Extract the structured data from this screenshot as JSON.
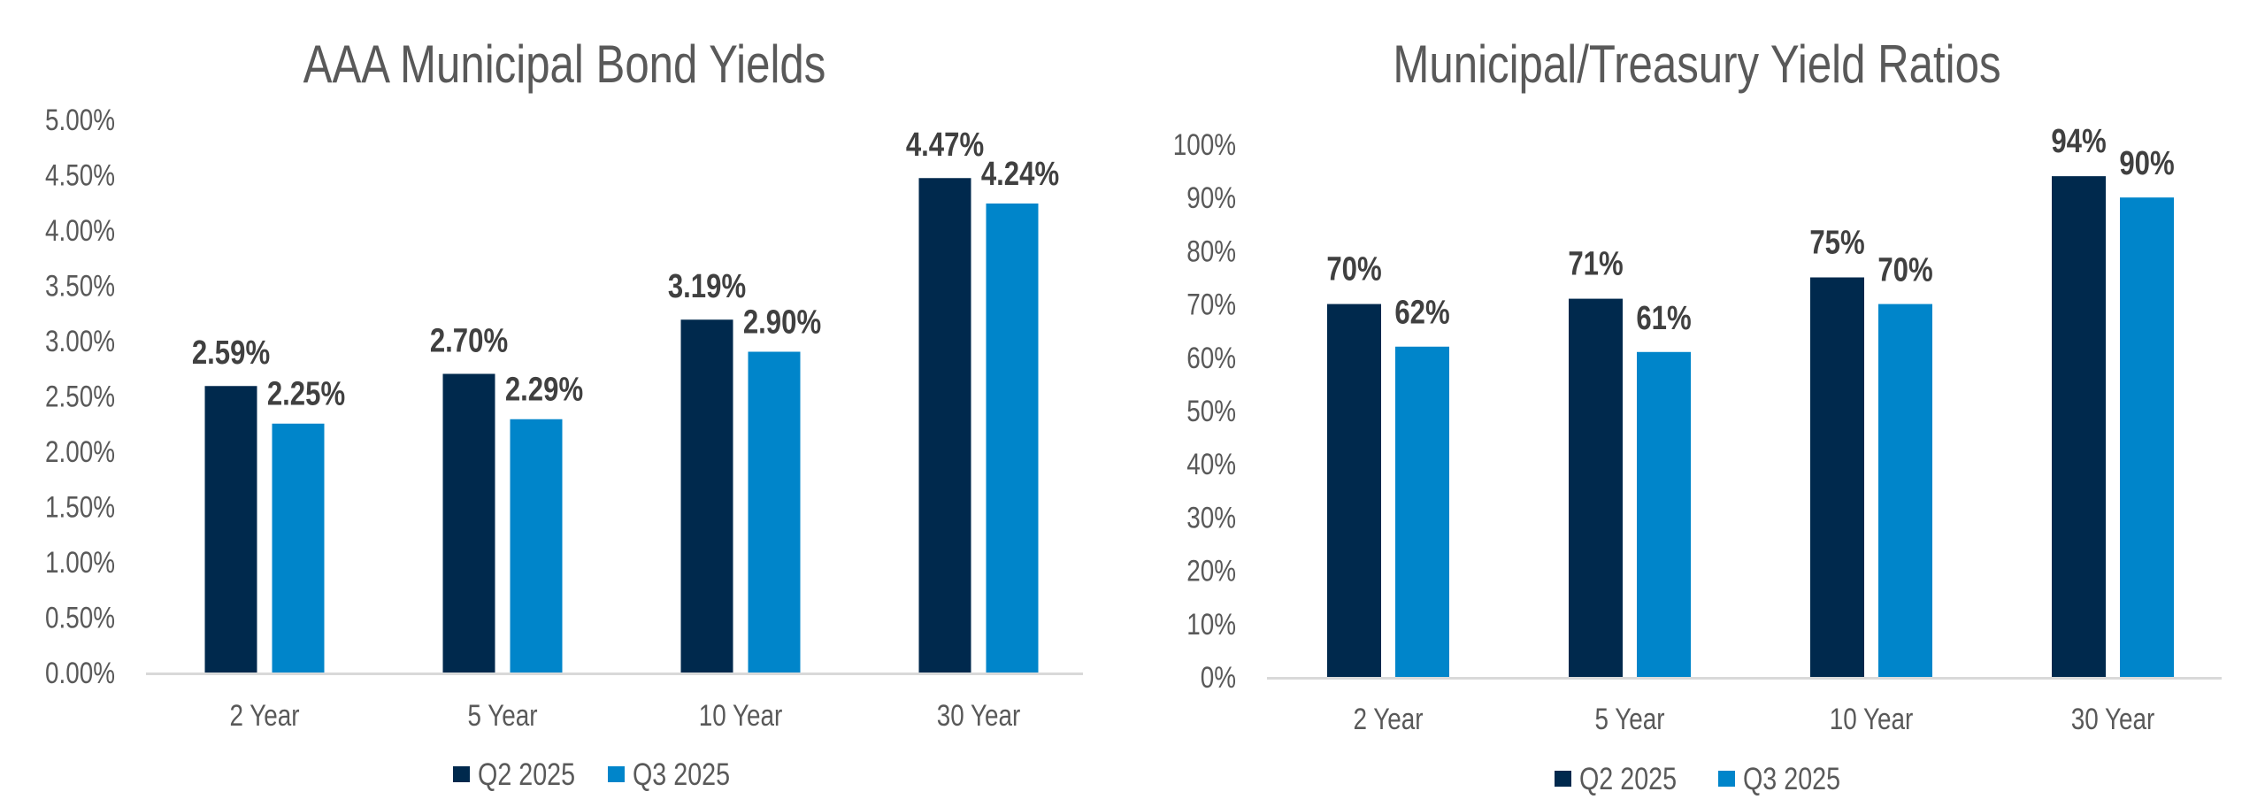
{
  "colors": {
    "q2": "#00294D",
    "q3": "#0085CA",
    "axis": "#D9D9D9",
    "text": "#595959",
    "label": "#404040"
  },
  "chart_data": [
    {
      "type": "bar",
      "title": "AAA Municipal Bond Yields",
      "xlabel": "",
      "ylabel": "",
      "categories": [
        "2 Year",
        "5 Year",
        "10 Year",
        "30 Year"
      ],
      "series": [
        {
          "name": "Q2 2025",
          "values": [
            2.59,
            2.7,
            3.19,
            4.47
          ],
          "labels": [
            "2.59%",
            "2.70%",
            "3.19%",
            "4.47%"
          ]
        },
        {
          "name": "Q3 2025",
          "values": [
            2.25,
            2.29,
            2.9,
            4.24
          ],
          "labels": [
            "2.25%",
            "2.29%",
            "2.90%",
            "4.24%"
          ]
        }
      ],
      "ylim": [
        0,
        5
      ],
      "yticks": [
        0,
        0.5,
        1,
        1.5,
        2,
        2.5,
        3,
        3.5,
        4,
        4.5,
        5
      ],
      "ytick_labels": [
        "0.00%",
        "0.50%",
        "1.00%",
        "1.50%",
        "2.00%",
        "2.50%",
        "3.00%",
        "3.50%",
        "4.00%",
        "4.50%",
        "5.00%"
      ],
      "grid": false,
      "legend": {
        "position": "bottom",
        "entries": [
          "Q2 2025",
          "Q3 2025"
        ]
      }
    },
    {
      "type": "bar",
      "title": "Municipal/Treasury Yield Ratios",
      "xlabel": "",
      "ylabel": "",
      "categories": [
        "2 Year",
        "5 Year",
        "10 Year",
        "30 Year"
      ],
      "series": [
        {
          "name": "Q2 2025",
          "values": [
            70,
            71,
            75,
            94
          ],
          "labels": [
            "70%",
            "71%",
            "75%",
            "94%"
          ]
        },
        {
          "name": "Q3 2025",
          "values": [
            62,
            61,
            70,
            90
          ],
          "labels": [
            "62%",
            "61%",
            "70%",
            "90%"
          ]
        }
      ],
      "ylim": [
        0,
        100
      ],
      "yticks": [
        0,
        10,
        20,
        30,
        40,
        50,
        60,
        70,
        80,
        90,
        100
      ],
      "ytick_labels": [
        "0%",
        "10%",
        "20%",
        "30%",
        "40%",
        "50%",
        "60%",
        "70%",
        "80%",
        "90%",
        "100%"
      ],
      "grid": false,
      "legend": {
        "position": "bottom",
        "entries": [
          "Q2 2025",
          "Q3 2025"
        ]
      }
    }
  ]
}
